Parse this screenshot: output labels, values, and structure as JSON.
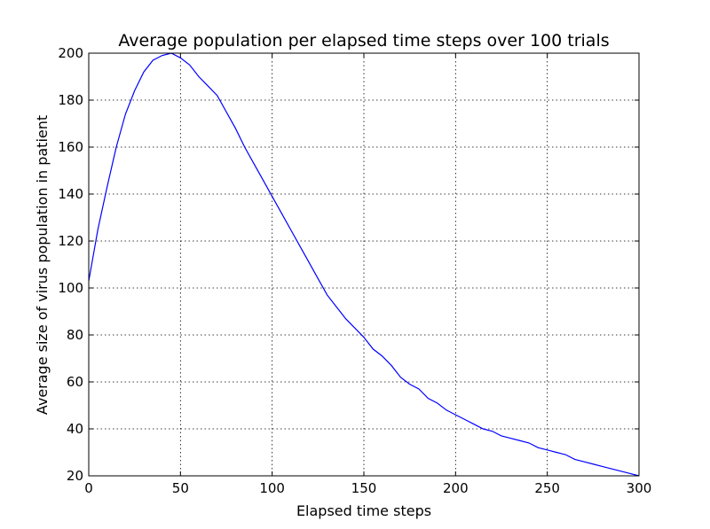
{
  "chart_data": {
    "type": "line",
    "title": "Average population per elapsed time steps over 100 trials",
    "xlabel": "Elapsed time steps",
    "ylabel": "Average size of virus population in patient",
    "xlim": [
      0,
      300
    ],
    "ylim": [
      20,
      200
    ],
    "xticks": [
      0,
      50,
      100,
      150,
      200,
      250,
      300
    ],
    "yticks": [
      20,
      40,
      60,
      80,
      100,
      120,
      140,
      160,
      180,
      200
    ],
    "grid": true,
    "line_color": "#0000ff",
    "series": [
      {
        "x": [
          0,
          5,
          10,
          15,
          20,
          25,
          30,
          35,
          40,
          45,
          50,
          55,
          60,
          65,
          70,
          75,
          80,
          85,
          90,
          95,
          100,
          105,
          110,
          115,
          120,
          125,
          130,
          135,
          140,
          145,
          150,
          155,
          160,
          165,
          170,
          175,
          180,
          185,
          190,
          195,
          200,
          205,
          210,
          215,
          220,
          225,
          230,
          235,
          240,
          245,
          250,
          255,
          260,
          265,
          270,
          275,
          280,
          285,
          290,
          295,
          300
        ],
        "y": [
          103,
          125,
          143,
          160,
          174,
          184,
          192,
          197,
          199,
          200,
          198,
          195,
          190,
          186,
          182,
          175,
          168,
          160,
          153,
          146,
          139,
          132,
          125,
          118,
          111,
          104,
          97,
          92,
          87,
          83,
          79,
          74,
          71,
          67,
          62,
          59,
          57,
          53,
          51,
          48,
          46,
          44,
          42,
          40,
          39,
          37,
          36,
          35,
          34,
          32,
          31,
          30,
          29,
          27,
          26,
          25,
          24,
          23,
          22,
          21,
          20
        ]
      }
    ]
  }
}
